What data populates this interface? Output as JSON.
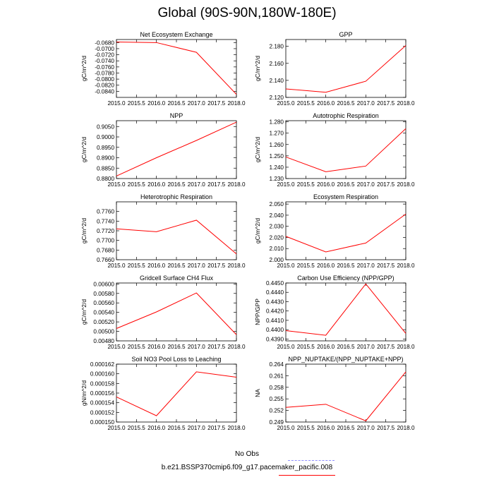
{
  "title": "Global (90S-90N,180W-180E)",
  "legend": {
    "obs_label": "No Obs",
    "obs_color": "#8f8fff",
    "case_label": "b.e21.BSSP370cmip6.f09_g17.pacemaker_pacific.008",
    "case_color": "#ff0000"
  },
  "chart_data": [
    {
      "type": "line",
      "title": "Net Ecosystem Exchange",
      "ylabel": "gC/m^2/d",
      "x": [
        2015.0,
        2016.0,
        2017.0,
        2018.0
      ],
      "series": [
        {
          "values": [
            -0.0678,
            -0.068,
            -0.0712,
            -0.085
          ],
          "color": "#ff0000"
        }
      ],
      "xlim": [
        2015.0,
        2018.0
      ],
      "ylim": [
        -0.086,
        -0.067
      ],
      "xticks": [
        "2015.0",
        "2015.5",
        "2016.0",
        "2016.5",
        "2017.0",
        "2017.5",
        "2018.0"
      ],
      "yticks": [
        "-0.0680",
        "-0.0700",
        "-0.0720",
        "-0.0740",
        "-0.0760",
        "-0.0780",
        "-0.0800",
        "-0.0820",
        "-0.0840"
      ],
      "ytick_values": [
        -0.068,
        -0.07,
        -0.072,
        -0.074,
        -0.076,
        -0.078,
        -0.08,
        -0.082,
        -0.084
      ]
    },
    {
      "type": "line",
      "title": "GPP",
      "ylabel": "gC/m^2/d",
      "x": [
        2015.0,
        2016.0,
        2017.0,
        2018.0
      ],
      "series": [
        {
          "values": [
            2.13,
            2.126,
            2.139,
            2.181
          ],
          "color": "#ff0000"
        }
      ],
      "xlim": [
        2015.0,
        2018.0
      ],
      "ylim": [
        2.12,
        2.188
      ],
      "xticks": [
        "2015.0",
        "2015.5",
        "2016.0",
        "2016.5",
        "2017.0",
        "2017.5",
        "2018.0"
      ],
      "yticks": [
        "2.120",
        "2.140",
        "2.160",
        "2.180"
      ],
      "ytick_values": [
        2.12,
        2.14,
        2.16,
        2.18
      ]
    },
    {
      "type": "line",
      "title": "NPP",
      "ylabel": "gC/m^2/d",
      "x": [
        2015.0,
        2016.0,
        2017.0,
        2018.0
      ],
      "series": [
        {
          "values": [
            0.8812,
            0.89,
            0.8983,
            0.9071
          ],
          "color": "#ff0000"
        }
      ],
      "xlim": [
        2015.0,
        2018.0
      ],
      "ylim": [
        0.88,
        0.9078
      ],
      "xticks": [
        "2015.0",
        "2015.5",
        "2016.0",
        "2016.5",
        "2017.0",
        "2017.5",
        "2018.0"
      ],
      "yticks": [
        "0.8800",
        "0.8850",
        "0.8900",
        "0.8950",
        "0.9000",
        "0.9050"
      ],
      "ytick_values": [
        0.88,
        0.885,
        0.89,
        0.895,
        0.9,
        0.905
      ]
    },
    {
      "type": "line",
      "title": "Autotrophic Respiration",
      "ylabel": "gC/m^2/d",
      "x": [
        2015.0,
        2016.0,
        2017.0,
        2018.0
      ],
      "series": [
        {
          "values": [
            1.249,
            1.236,
            1.241,
            1.274
          ],
          "color": "#ff0000"
        }
      ],
      "xlim": [
        2015.0,
        2018.0
      ],
      "ylim": [
        1.23,
        1.281
      ],
      "xticks": [
        "2015.0",
        "2015.5",
        "2016.0",
        "2016.5",
        "2017.0",
        "2017.5",
        "2018.0"
      ],
      "yticks": [
        "1.230",
        "1.240",
        "1.250",
        "1.260",
        "1.270",
        "1.280"
      ],
      "ytick_values": [
        1.23,
        1.24,
        1.25,
        1.26,
        1.27,
        1.28
      ]
    },
    {
      "type": "line",
      "title": "Heterotrophic Respiration",
      "ylabel": "gC/m^2/d",
      "x": [
        2015.0,
        2016.0,
        2017.0,
        2018.0
      ],
      "series": [
        {
          "values": [
            0.7724,
            0.7718,
            0.7742,
            0.7672
          ],
          "color": "#ff0000"
        }
      ],
      "xlim": [
        2015.0,
        2018.0
      ],
      "ylim": [
        0.766,
        0.778
      ],
      "xticks": [
        "2015.0",
        "2015.5",
        "2016.0",
        "2016.5",
        "2017.0",
        "2017.5",
        "2018.0"
      ],
      "yticks": [
        "0.7660",
        "0.7680",
        "0.7700",
        "0.7720",
        "0.7740",
        "0.7760"
      ],
      "ytick_values": [
        0.766,
        0.768,
        0.77,
        0.772,
        0.774,
        0.776
      ]
    },
    {
      "type": "line",
      "title": "Ecosystem Respiration",
      "ylabel": "gC/m^2/d",
      "x": [
        2015.0,
        2016.0,
        2017.0,
        2018.0
      ],
      "series": [
        {
          "values": [
            2.021,
            2.007,
            2.015,
            2.041
          ],
          "color": "#ff0000"
        }
      ],
      "xlim": [
        2015.0,
        2018.0
      ],
      "ylim": [
        2.0,
        2.052
      ],
      "xticks": [
        "2015.0",
        "2015.5",
        "2016.0",
        "2016.5",
        "2017.0",
        "2017.5",
        "2018.0"
      ],
      "yticks": [
        "2.000",
        "2.010",
        "2.020",
        "2.030",
        "2.040",
        "2.050"
      ],
      "ytick_values": [
        2.0,
        2.01,
        2.02,
        2.03,
        2.04,
        2.05
      ]
    },
    {
      "type": "line",
      "title": "Gridcell Surface CH4 Flux",
      "ylabel": "gC/m^2/d",
      "x": [
        2015.0,
        2016.0,
        2017.0,
        2018.0
      ],
      "series": [
        {
          "values": [
            0.00506,
            0.00541,
            0.00581,
            0.00493
          ],
          "color": "#ff0000"
        }
      ],
      "xlim": [
        2015.0,
        2018.0
      ],
      "ylim": [
        0.0048,
        0.00602
      ],
      "xticks": [
        "2015.0",
        "2015.5",
        "2016.0",
        "2016.5",
        "2017.0",
        "2017.5",
        "2018.0"
      ],
      "yticks": [
        "0.00480",
        "0.00500",
        "0.00520",
        "0.00540",
        "0.00560",
        "0.00580",
        "0.00600"
      ],
      "ytick_values": [
        0.0048,
        0.005,
        0.0052,
        0.0054,
        0.0056,
        0.0058,
        0.006
      ]
    },
    {
      "type": "line",
      "title": "Carbon Use Efficiency (NPP/GPP)",
      "ylabel": "NPP/GPP",
      "x": [
        2015.0,
        2016.0,
        2017.0,
        2018.0
      ],
      "series": [
        {
          "values": [
            0.4399,
            0.4394,
            0.4449,
            0.4396
          ],
          "color": "#ff0000"
        }
      ],
      "xlim": [
        2015.0,
        2018.0
      ],
      "ylim": [
        0.4388,
        0.445
      ],
      "xticks": [
        "2015.0",
        "2015.5",
        "2016.0",
        "2016.5",
        "2017.0",
        "2017.5",
        "2018.0"
      ],
      "yticks": [
        "0.4390",
        "0.4400",
        "0.4410",
        "0.4420",
        "0.4430",
        "0.4440",
        "0.4450"
      ],
      "ytick_values": [
        0.439,
        0.44,
        0.441,
        0.442,
        0.443,
        0.444,
        0.445
      ]
    },
    {
      "type": "line",
      "title": "Soil NO3 Pool Loss to Leaching",
      "ylabel": "gN/m^2/d",
      "x": [
        2015.0,
        2016.0,
        2017.0,
        2018.0
      ],
      "series": [
        {
          "values": [
            0.0001552,
            0.0001513,
            0.0001604,
            0.0001593
          ],
          "color": "#ff0000"
        }
      ],
      "xlim": [
        2015.0,
        2018.0
      ],
      "ylim": [
        0.00015,
        0.000162
      ],
      "xticks": [
        "2015.0",
        "2015.5",
        "2016.0",
        "2016.5",
        "2017.0",
        "2017.5",
        "2018.0"
      ],
      "yticks": [
        "0.000150",
        "0.000152",
        "0.000154",
        "0.000156",
        "0.000158",
        "0.000160",
        "0.000162"
      ],
      "ytick_values": [
        0.00015,
        0.000152,
        0.000154,
        0.000156,
        0.000158,
        0.00016,
        0.000162
      ]
    },
    {
      "type": "line",
      "title": "NPP_NUPTAKE/(NPP_NUPTAKE+NPP)",
      "ylabel": "NA",
      "x": [
        2015.0,
        2016.0,
        2017.0,
        2018.0
      ],
      "series": [
        {
          "values": [
            0.2528,
            0.2536,
            0.2493,
            0.262
          ],
          "color": "#ff0000"
        }
      ],
      "xlim": [
        2015.0,
        2018.0
      ],
      "ylim": [
        0.249,
        0.264
      ],
      "xticks": [
        "2015.0",
        "2015.5",
        "2016.0",
        "2016.5",
        "2017.0",
        "2017.5",
        "2018.0"
      ],
      "yticks": [
        "0.249",
        "0.252",
        "0.255",
        "0.258",
        "0.261",
        "0.264"
      ],
      "ytick_values": [
        0.249,
        0.252,
        0.255,
        0.258,
        0.261,
        0.264
      ]
    }
  ]
}
